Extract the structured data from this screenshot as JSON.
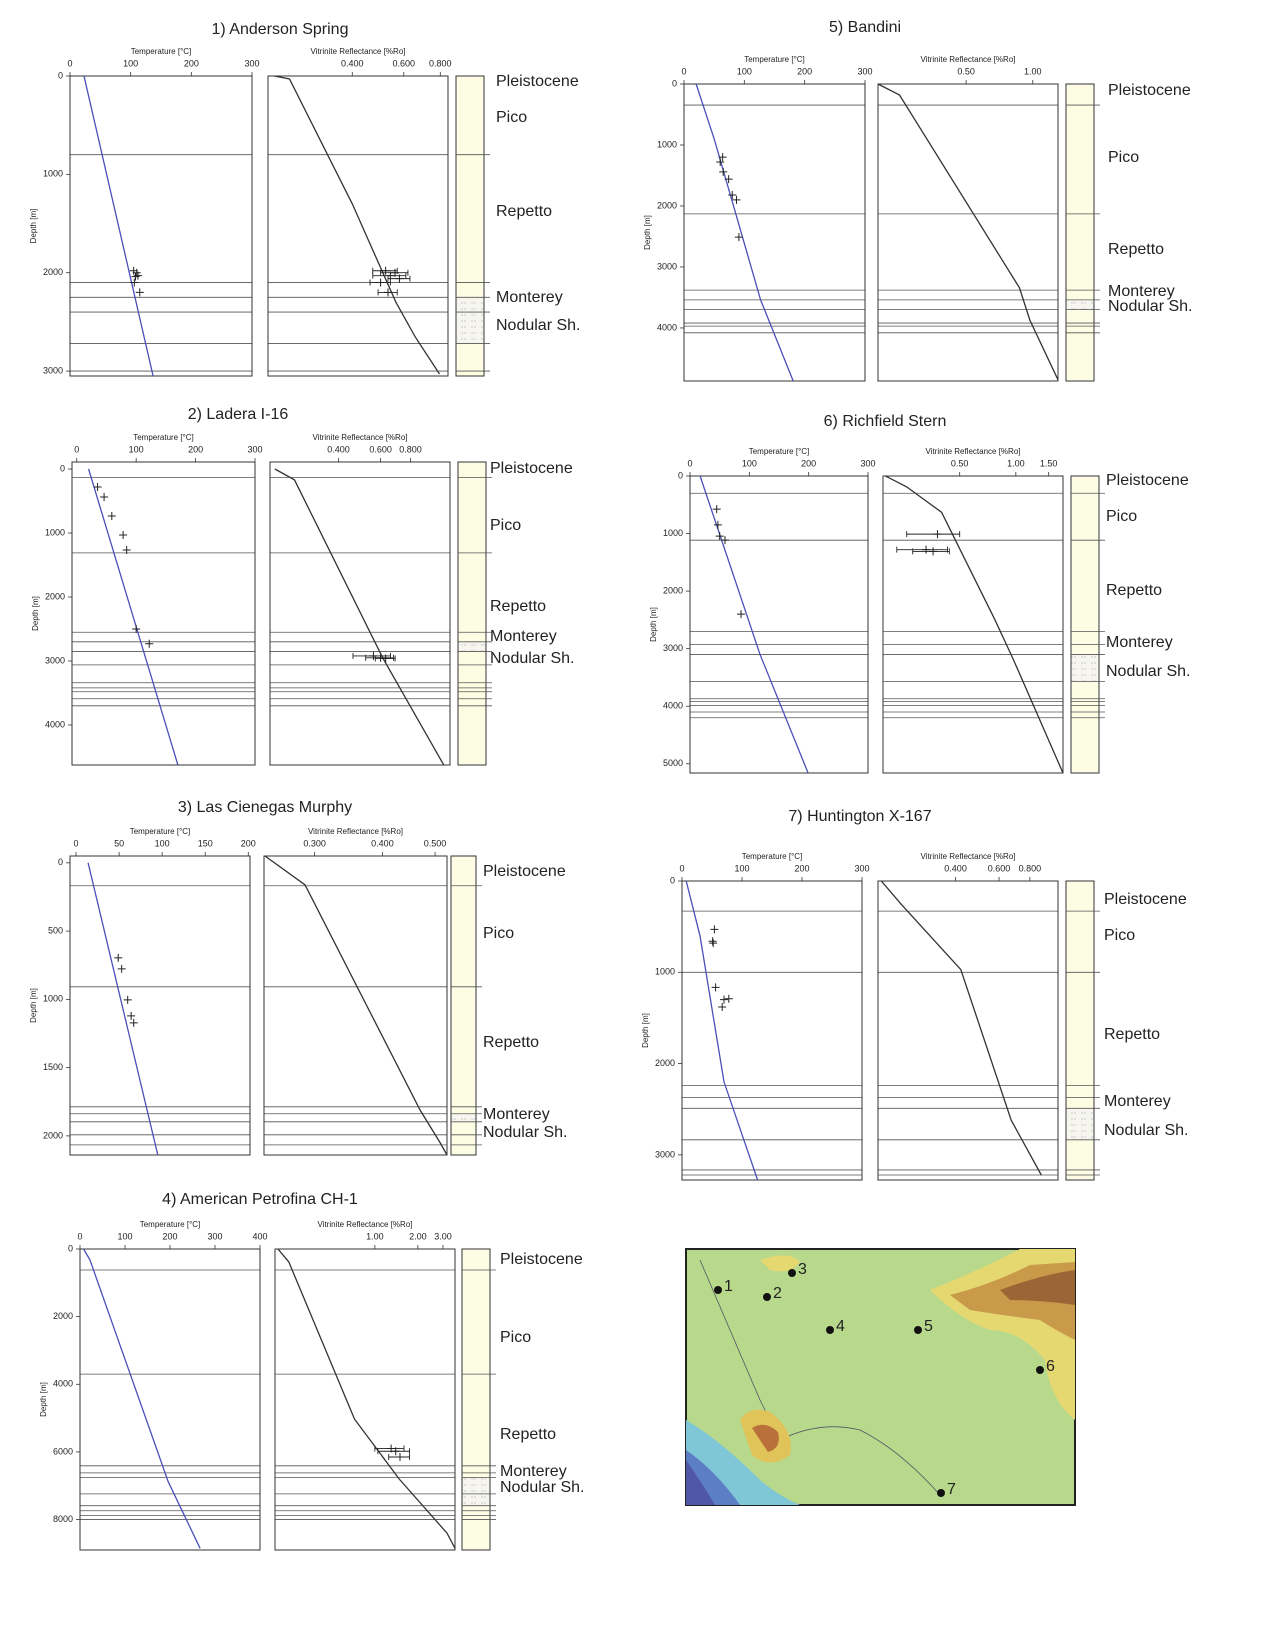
{
  "chart_data": [
    {
      "type": "line",
      "title": "1) Anderson Spring",
      "ylabel": "Depth [m]",
      "ylim": [
        0,
        3050
      ],
      "yticks": [
        0,
        1000,
        2000,
        3000
      ],
      "temperature": {
        "xlabel": "Temperature [°C]",
        "xlim": [
          0,
          300
        ],
        "xticks": [
          0,
          100,
          200,
          300
        ],
        "color": "#4a50b8",
        "model": {
          "x": [
            23,
            137
          ],
          "y": [
            0,
            3050
          ]
        },
        "measured": {
          "x": [
            105,
            110,
            108,
            112,
            106,
            115
          ],
          "y": [
            1980,
            2000,
            2040,
            2030,
            2100,
            2200
          ]
        }
      },
      "vitrinite": {
        "xlabel": "Vitrinite Reflectance [%Ro]",
        "xscale": "log",
        "xlim": [
          0.206,
          0.85
        ],
        "xticks": [
          {
            "value": 0.4,
            "label": "0.400"
          },
          {
            "value": 0.6,
            "label": "0.600"
          },
          {
            "value": 0.8,
            "label": "0.800"
          }
        ],
        "color": "#333333",
        "model": {
          "x": [
            0.217,
            0.244,
            0.4,
            0.564,
            0.656,
            0.795
          ],
          "y": [
            0,
            30,
            1300,
            2300,
            2650,
            3030
          ]
        },
        "measured": {
          "x": [
            0.52,
            0.56,
            0.54,
            0.58,
            0.5,
            0.53
          ],
          "y": [
            1980,
            2000,
            2030,
            2060,
            2100,
            2200
          ],
          "errors": [
            0.05,
            0.06,
            0.07,
            0.05,
            0.04,
            0.04
          ]
        }
      },
      "formations": [
        "Pleistocene",
        "Pico",
        "Repetto",
        "Monterey",
        "Nodular Sh."
      ],
      "horizons": [
        800,
        2100,
        2250,
        2400,
        2720,
        3000
      ]
    },
    {
      "type": "line",
      "title": "2) Ladera I-16",
      "ylabel": "Depth [m]",
      "ylim": [
        -110,
        4625
      ],
      "yticks": [
        0,
        1000,
        2000,
        3000,
        4000
      ],
      "temperature": {
        "xlabel": "Temperature [°C]",
        "xlim": [
          -8,
          300
        ],
        "xticks": [
          0,
          100,
          200,
          300
        ],
        "color": "#4a50b8",
        "model": {
          "x": [
            20,
            170
          ],
          "y": [
            0,
            4620
          ]
        },
        "measured": {
          "x": [
            35,
            46,
            59,
            78,
            84,
            100,
            122
          ],
          "y": [
            281,
            437,
            734,
            1031,
            1266,
            2500,
            2730
          ]
        }
      },
      "vitrinite": {
        "xlabel": "Vitrinite Reflectance [%Ro]",
        "xscale": "log",
        "xlim": [
          0.207,
          1.17
        ],
        "xticks": [
          {
            "value": 0.4,
            "label": "0.400"
          },
          {
            "value": 0.6,
            "label": "0.600"
          },
          {
            "value": 0.8,
            "label": "0.800"
          }
        ],
        "color": "#333333",
        "model": {
          "x": [
            0.217,
            0.262,
            0.612,
            1.1
          ],
          "y": [
            0,
            170,
            2950,
            4620
          ]
        },
        "measured": {
          "x": [
            0.56,
            0.6,
            0.63
          ],
          "y": [
            2920,
            2950,
            2960
          ],
          "errors": [
            0.1,
            0.08,
            0.06
          ]
        }
      },
      "formations": [
        "Pleistocene",
        "Pico",
        "Repetto",
        "Monterey",
        "Nodular Sh."
      ],
      "horizons": [
        130,
        1310,
        2550,
        2700,
        2850,
        3060,
        3340,
        3420,
        3480,
        3590,
        3700
      ]
    },
    {
      "type": "line",
      "title": "3) Las Cienegas Murphy",
      "ylabel": "Depth [m]",
      "ylim": [
        -50,
        2140
      ],
      "yticks": [
        0,
        500,
        1000,
        1500,
        2000
      ],
      "temperature": {
        "xlabel": "Temperature [°C]",
        "xlim": [
          -7,
          202
        ],
        "xticks": [
          0,
          50,
          100,
          150,
          200
        ],
        "color": "#4a50b8",
        "model": {
          "x": [
            14,
            95
          ],
          "y": [
            0,
            2140
          ]
        },
        "measured": {
          "x": [
            49,
            53,
            60,
            64,
            67
          ],
          "y": [
            696,
            777,
            1004,
            1121,
            1172
          ]
        }
      },
      "vitrinite": {
        "xlabel": "Vitrinite Reflectance [%Ro]",
        "xscale": "log",
        "xlim": [
          0.242,
          0.526
        ],
        "xticks": [
          {
            "value": 0.3,
            "label": "0.300"
          },
          {
            "value": 0.4,
            "label": "0.400"
          },
          {
            "value": 0.5,
            "label": "0.500"
          }
        ],
        "color": "#333333",
        "model": {
          "x": [
            0.243,
            0.288,
            0.469,
            0.51,
            0.526
          ],
          "y": [
            -50,
            161,
            1810,
            2045,
            2140
          ]
        },
        "measured": {
          "x": [],
          "y": [],
          "errors": []
        }
      },
      "formations": [
        "Pleistocene",
        "Pico",
        "Repetto",
        "Monterey",
        "Nodular Sh."
      ],
      "horizons": [
        168,
        908,
        1787,
        1838,
        1897,
        1992,
        2066
      ]
    },
    {
      "type": "line",
      "title": "4) American Petrofina CH-1",
      "ylabel": "Depth [m]",
      "ylim": [
        0,
        8900
      ],
      "yticks": [
        0,
        2000,
        4000,
        6000,
        8000
      ],
      "temperature": {
        "xlabel": "Temperature [°C]",
        "xlim": [
          0,
          400
        ],
        "xticks": [
          0,
          100,
          200,
          300,
          400
        ],
        "color": "#4a50b8",
        "model": {
          "x": [
            8,
            22,
            196,
            267
          ],
          "y": [
            0,
            320,
            6880,
            8850
          ]
        },
        "measured": {
          "x": [],
          "y": []
        }
      },
      "vitrinite": {
        "xlabel": "Vitrinite Reflectance [%Ro]",
        "xscale": "log",
        "xlim": [
          0.2,
          3.64
        ],
        "xticks": [
          {
            "value": 1,
            "label": "1.00"
          },
          {
            "value": 2,
            "label": "2.00"
          },
          {
            "value": 3,
            "label": "3.00"
          }
        ],
        "color": "#333333",
        "model": {
          "x": [
            0.21,
            0.25,
            0.72,
            1.48,
            3.2,
            3.64
          ],
          "y": [
            0,
            380,
            5030,
            6800,
            8400,
            8850
          ]
        },
        "measured": {
          "x": [
            1.3,
            1.4,
            1.5
          ],
          "y": [
            5900,
            5980,
            6150
          ],
          "errors": [
            0.3,
            0.35,
            0.25
          ]
        }
      },
      "formations": [
        "Pleistocene",
        "Pico",
        "Repetto",
        "Monterey",
        "Nodular Sh."
      ],
      "horizons": [
        620,
        3700,
        6410,
        6620,
        6760,
        7240,
        7590,
        7740,
        7880,
        8000
      ]
    },
    {
      "type": "line",
      "title": "5) Bandini",
      "ylabel": "Depth [m]",
      "ylim": [
        0,
        4870
      ],
      "yticks": [
        0,
        1000,
        2000,
        3000,
        4000
      ],
      "temperature": {
        "xlabel": "Temperature [°C]",
        "xlim": [
          0,
          300
        ],
        "xticks": [
          0,
          100,
          200,
          300
        ],
        "color": "#4a50b8",
        "model": {
          "x": [
            20,
            50,
            127,
            181
          ],
          "y": [
            0,
            900,
            3540,
            4870
          ]
        },
        "measured": {
          "x": [
            64,
            60,
            65,
            74,
            80,
            87,
            91
          ],
          "y": [
            1200,
            1280,
            1440,
            1560,
            1820,
            1900,
            2510
          ]
        }
      },
      "vitrinite": {
        "xlabel": "Vitrinite Reflectance [%Ro]",
        "xscale": "log",
        "xlim": [
          0.2,
          1.3
        ],
        "xticks": [
          {
            "value": 0.5,
            "label": "0.50"
          },
          {
            "value": 1,
            "label": "1.00"
          }
        ],
        "color": "#333333",
        "model": {
          "x": [
            0.2,
            0.25,
            0.87,
            0.97,
            1.3
          ],
          "y": [
            0,
            180,
            3340,
            3870,
            4850
          ]
        },
        "measured": {
          "x": [],
          "y": [],
          "errors": []
        }
      },
      "formations": [
        "Pleistocene",
        "Pico",
        "Repetto",
        "Monterey",
        "Nodular Sh."
      ],
      "horizons": [
        345,
        2130,
        3380,
        3540,
        3700,
        3920,
        3970,
        4080
      ]
    },
    {
      "type": "line",
      "title": "6) Richfield Stern",
      "ylabel": "Depth [m]",
      "ylim": [
        0,
        5160
      ],
      "yticks": [
        0,
        1000,
        2000,
        3000,
        4000,
        5000
      ],
      "temperature": {
        "xlabel": "Temperature [°C]",
        "xlim": [
          0,
          300
        ],
        "xticks": [
          0,
          100,
          200,
          300
        ],
        "color": "#4a50b8",
        "model": {
          "x": [
            17,
            118,
            199
          ],
          "y": [
            0,
            3100,
            5160
          ]
        },
        "measured": {
          "x": [
            45,
            47,
            50,
            59,
            86
          ],
          "y": [
            575,
            850,
            1045,
            1115,
            2400
          ]
        }
      },
      "vitrinite": {
        "xlabel": "Vitrinite Reflectance [%Ro]",
        "xscale": "log",
        "xlim": [
          0.194,
          1.79
        ],
        "xticks": [
          {
            "value": 0.5,
            "label": "0.50"
          },
          {
            "value": 1,
            "label": "1.00"
          },
          {
            "value": 1.5,
            "label": "1.50"
          }
        ],
        "color": "#333333",
        "model": {
          "x": [
            0.2,
            0.26,
            0.4,
            0.77,
            0.97,
            1.79
          ],
          "y": [
            0,
            190,
            630,
            2490,
            3190,
            5160
          ]
        },
        "measured": {
          "x": [
            0.38,
            0.33,
            0.36
          ],
          "y": [
            1010,
            1280,
            1310
          ],
          "errors": [
            0.12,
            0.1,
            0.08
          ]
        }
      },
      "formations": [
        "Pleistocene",
        "Pico",
        "Repetto",
        "Monterey",
        "Nodular Sh."
      ],
      "horizons": [
        300,
        1115,
        2700,
        2930,
        3100,
        3570,
        3870,
        3920,
        3990,
        4100,
        4200
      ]
    },
    {
      "type": "line",
      "title": "7) Huntington X-167",
      "ylabel": "Depth [m]",
      "ylim": [
        0,
        3275
      ],
      "yticks": [
        0,
        1000,
        2000,
        3000
      ],
      "temperature": {
        "xlabel": "Temperature [°C]",
        "xlim": [
          0,
          300
        ],
        "xticks": [
          0,
          100,
          200,
          300
        ],
        "color": "#4a50b8",
        "model": {
          "x": [
            7,
            30,
            70,
            126
          ],
          "y": [
            0,
            600,
            2200,
            3275
          ]
        },
        "measured": {
          "x": [
            54,
            51,
            52,
            56,
            78,
            67,
            70
          ],
          "y": [
            530,
            660,
            680,
            1165,
            1290,
            1380,
            1300
          ]
        }
      },
      "vitrinite": {
        "xlabel": "Vitrinite Reflectance [%Ro]",
        "xscale": "log",
        "xlim": [
          0.194,
          1.04
        ],
        "xticks": [
          {
            "value": 0.4,
            "label": "0.400"
          },
          {
            "value": 0.6,
            "label": "0.600"
          },
          {
            "value": 0.8,
            "label": "0.800"
          }
        ],
        "color": "#333333",
        "model": {
          "x": [
            0.2,
            0.24,
            0.42,
            0.672,
            0.89
          ],
          "y": [
            0,
            250,
            970,
            2620,
            3220
          ]
        },
        "measured": {
          "x": [],
          "y": [],
          "errors": []
        }
      },
      "formations": [
        "Pleistocene",
        "Pico",
        "Repetto",
        "Monterey",
        "Nodular Sh."
      ],
      "horizons": [
        330,
        1000,
        2240,
        2370,
        2490,
        2835,
        3165,
        3220
      ]
    }
  ],
  "map": {
    "sites": [
      "1",
      "2",
      "3",
      "4",
      "5",
      "6",
      "7"
    ]
  }
}
